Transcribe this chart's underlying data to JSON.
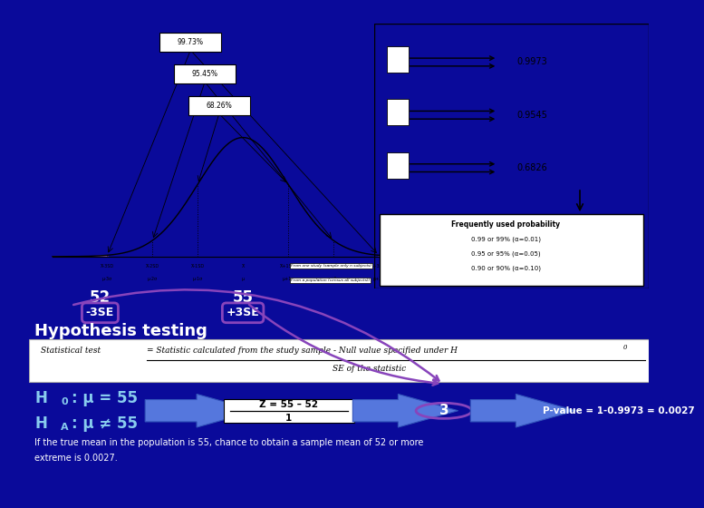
{
  "bg_color": "#0a0a9a",
  "top_panel_bg": "#dcdcdc",
  "green_panel_bg": "#2d7a5a",
  "title": "Hypothesis testing",
  "normal_percents": [
    "99.73%",
    "95.45%",
    "68.26%"
  ],
  "normal_values": [
    "0.9973",
    "0.9545",
    "0.6826"
  ],
  "freq_prob_title": "Frequently used probability",
  "freq_prob_lines": [
    "0.99 or 99% (α=0.01)",
    "0.95 or 95% (α=0.05)",
    "0.90 or 90% (α=0.10)"
  ],
  "x_labels": [
    "X̄-3SD",
    "X̄-2SD",
    "X̄-1SD",
    "X̄",
    "X̄+1SD",
    "X̄+2SD",
    "X̄+3SD"
  ],
  "mu_labels": [
    "μ-3σ",
    "μ-2σ",
    "μ-1σ",
    "μ",
    "μ+1σ",
    "μ+2σ",
    "μ+3σ"
  ],
  "from_study": "From one study (sample only n subjects)",
  "from_pop": "From a population (census all subjects))",
  "label_52": "52",
  "label_55": "55",
  "label_neg3se": "-3SE",
  "label_pos3se": "+3SE",
  "stat_test_num": "Statistical test   = Statistic calculated from the study sample - Null value specified under H",
  "stat_test_den": "SE of the statistic",
  "h0_line1": "H",
  "h0_sub": "0",
  "h0_line2": " : μ = 55",
  "ha_line1": "H",
  "ha_sub": "A",
  "ha_line2": " : μ ≠ 55",
  "z_num": "Z = 55 – 52",
  "z_den": "1",
  "z_result": "3",
  "pvalue": "P-value = 1-0.9973 = 0.0027",
  "bottom_text1": "If the true mean in the population is 55, chance to obtain a sample mean of 52 or more",
  "bottom_text2": "extreme is 0.0027.",
  "purple": "#8844bb",
  "light_blue": "#88ccee",
  "arrow_blue": "#5577dd"
}
